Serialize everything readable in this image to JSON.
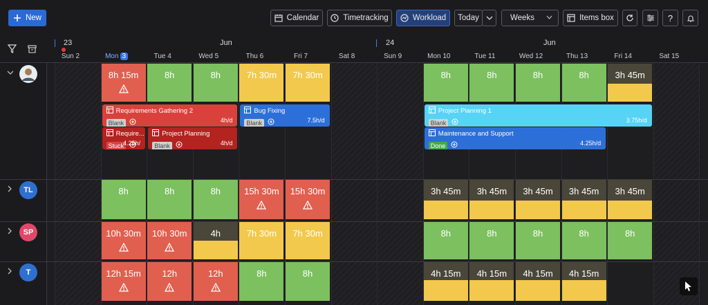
{
  "toolbar": {
    "new_label": "New",
    "calendar_label": "Calendar",
    "timetracking_label": "Timetracking",
    "workload_label": "Workload",
    "today_label": "Today",
    "view_label": "Weeks",
    "items_box_label": "Items box"
  },
  "header": {
    "week1_number": "23",
    "week2_number": "24",
    "month1": "Jun",
    "month2": "Jun",
    "days": [
      {
        "name": "Sun 2"
      },
      {
        "name": "Mon",
        "badge": "3"
      },
      {
        "name": "Tue 4"
      },
      {
        "name": "Wed 5"
      },
      {
        "name": "Thu 6"
      },
      {
        "name": "Fri 7"
      },
      {
        "name": "Sat 8"
      },
      {
        "name": "Sun 9"
      },
      {
        "name": "Mon 10"
      },
      {
        "name": "Tue 11"
      },
      {
        "name": "Wed 12"
      },
      {
        "name": "Thu 13"
      },
      {
        "name": "Fri 14"
      },
      {
        "name": "Sat 15"
      }
    ]
  },
  "rows": [
    {
      "avatar": "",
      "avatar_color": "#cfd8dc",
      "cells": [
        {
          "day": 1,
          "label": "8h 15m",
          "color": "r",
          "warn": true
        },
        {
          "day": 2,
          "label": "8h",
          "color": "g"
        },
        {
          "day": 3,
          "label": "8h",
          "color": "g"
        },
        {
          "day": 4,
          "label": "7h 30m",
          "color": "y"
        },
        {
          "day": 5,
          "label": "7h 30m",
          "color": "y"
        },
        {
          "day": 8,
          "label": "8h",
          "color": "g"
        },
        {
          "day": 9,
          "label": "8h",
          "color": "g"
        },
        {
          "day": 10,
          "label": "8h",
          "color": "g"
        },
        {
          "day": 11,
          "label": "8h",
          "color": "g"
        },
        {
          "day": 12,
          "label": "3h 45m",
          "color": "partial",
          "fill": 0.47
        }
      ]
    },
    {
      "avatar": "TL",
      "avatar_color": "#2f6fd0",
      "cells": [
        {
          "day": 1,
          "label": "8h",
          "color": "g"
        },
        {
          "day": 2,
          "label": "8h",
          "color": "g"
        },
        {
          "day": 3,
          "label": "8h",
          "color": "g"
        },
        {
          "day": 4,
          "label": "15h 30m",
          "color": "r",
          "warn": true
        },
        {
          "day": 5,
          "label": "15h 30m",
          "color": "r",
          "warn": true
        },
        {
          "day": 8,
          "label": "3h 45m",
          "color": "partial",
          "fill": 0.47
        },
        {
          "day": 9,
          "label": "3h 45m",
          "color": "partial",
          "fill": 0.47
        },
        {
          "day": 10,
          "label": "3h 45m",
          "color": "partial",
          "fill": 0.47
        },
        {
          "day": 11,
          "label": "3h 45m",
          "color": "partial",
          "fill": 0.47
        },
        {
          "day": 12,
          "label": "3h 45m",
          "color": "partial",
          "fill": 0.47
        }
      ]
    },
    {
      "avatar": "SP",
      "avatar_color": "#e0486a",
      "cells": [
        {
          "day": 1,
          "label": "10h 30m",
          "color": "r",
          "warn": true
        },
        {
          "day": 2,
          "label": "10h 30m",
          "color": "r",
          "warn": true
        },
        {
          "day": 3,
          "label": "4h",
          "color": "partial",
          "fill": 0.5
        },
        {
          "day": 4,
          "label": "7h 30m",
          "color": "y"
        },
        {
          "day": 5,
          "label": "7h 30m",
          "color": "y"
        },
        {
          "day": 8,
          "label": "8h",
          "color": "g"
        },
        {
          "day": 9,
          "label": "8h",
          "color": "g"
        },
        {
          "day": 10,
          "label": "8h",
          "color": "g"
        },
        {
          "day": 11,
          "label": "8h",
          "color": "g"
        },
        {
          "day": 12,
          "label": "8h",
          "color": "g"
        }
      ]
    },
    {
      "avatar": "T",
      "avatar_color": "#2f6fd0",
      "cells": [
        {
          "day": 1,
          "label": "12h 15m",
          "color": "r",
          "warn": true
        },
        {
          "day": 2,
          "label": "12h",
          "color": "r",
          "warn": true
        },
        {
          "day": 3,
          "label": "12h",
          "color": "r",
          "warn": true
        },
        {
          "day": 4,
          "label": "8h",
          "color": "g"
        },
        {
          "day": 5,
          "label": "8h",
          "color": "g"
        },
        {
          "day": 8,
          "label": "4h 15m",
          "color": "partial",
          "fill": 0.53
        },
        {
          "day": 9,
          "label": "4h 15m",
          "color": "partial",
          "fill": 0.53
        },
        {
          "day": 10,
          "label": "4h 15m",
          "color": "partial",
          "fill": 0.53
        },
        {
          "day": 11,
          "label": "4h 15m",
          "color": "partial",
          "fill": 0.53
        }
      ]
    }
  ],
  "tasks": [
    {
      "title": "Requirements Gathering 2",
      "status": "Blank",
      "status_type": "blank",
      "rate": "4h/d",
      "color": "#d9423c",
      "start_day": 1,
      "span": 3,
      "lane": 0
    },
    {
      "title": "Bug Fixing",
      "status": "Blank",
      "status_type": "blank",
      "rate": "7.5h/d",
      "color": "#2d6fd8",
      "start_day": 4,
      "span": 2,
      "lane": 0
    },
    {
      "title": "Project Planning 1",
      "status": "Blank",
      "status_type": "blank",
      "rate": "3.75h/d",
      "color": "#56d3f5",
      "start_day": 8,
      "span": 5,
      "lane": 0
    },
    {
      "title": "Require...",
      "status": "Stuck",
      "status_type": "stuck",
      "rate": "4.25h/",
      "color": "#b3231f",
      "start_day": 1,
      "span": 1,
      "lane": 1
    },
    {
      "title": "Project Planning",
      "status": "Blank",
      "status_type": "blank",
      "rate": "4h/d",
      "color": "#b3231f",
      "start_day": 2,
      "span": 2,
      "lane": 1
    },
    {
      "title": "Maintenance and Support",
      "status": "Done",
      "status_type": "done",
      "rate": "4.25h/d",
      "color": "#2d6fd8",
      "start_day": 8,
      "span": 4,
      "lane": 1
    }
  ]
}
